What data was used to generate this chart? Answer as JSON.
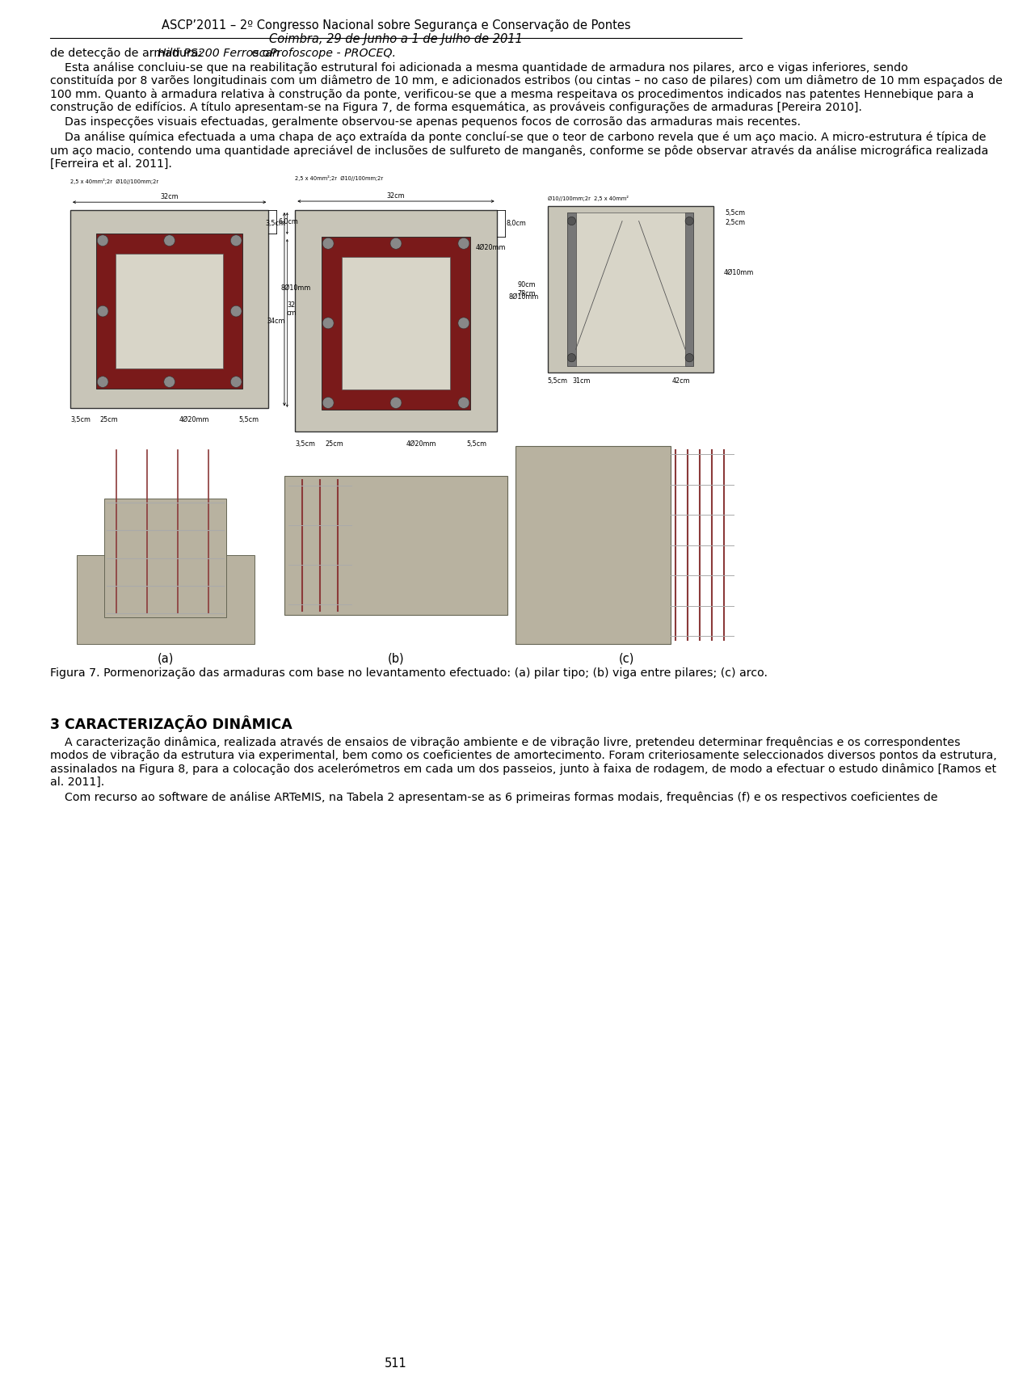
{
  "header_line1": "ASCP’2011 – 2º Congresso Nacional sobre Segurança e Conservação de Pontes",
  "header_line2": "Coimbra, 29 de Junho a 1 de Julho de 2011",
  "page_number": "511",
  "bg_color": "#ffffff",
  "text_color": "#000000",
  "line1_normal": "de detecção de armadura: ",
  "line1_italic1": "Hilti PS200 Ferroscan",
  "line1_mid": " e o ",
  "line1_italic2": "Profoscope - PROCEQ.",
  "para1": "Esta análise concluiu-se que na reabilitação estrutural foi adicionada a mesma quantidade de armadura nos pilares, arco e vigas inferiores, sendo constituída por 8 varões longitudinais com um diâmetro de 10 mm, e adicionados estribos (ou cintas – no caso de pilares) com um diâmetro de 10 mm espaçados de 100 mm. Quanto à armadura relativa à construção da ponte, verificou-se que a mesma respeitava os procedimentos indicados nas patentes Hennebique para a construção de edifícios. A título apresentam-se na Figura 7, de forma esquemática, as prováveis configurações de armaduras [Pereira 2010].",
  "para2": "Das inspecções visuais efectuadas, geralmente observou-se apenas pequenos focos de corrosão das armaduras mais recentes.",
  "para3": "Da análise química efectuada a uma chapa de aço extraída da ponte concluí-se que o teor de carbono revela que é um aço macio. A micro-estrutura é típica de um aço macio, contendo uma quantidade apreciável de inclusões de sulfureto de manganês, conforme se pôde observar através da análise micrográfica realizada [Ferreira et al. 2011].",
  "figure_caption": "Figura 7. Pormenorização das armaduras com base no levantamento efectuado: (a) pilar tipo; (b) viga entre pilares; (c) arco.",
  "figure_labels": [
    "(a)",
    "(b)",
    "(c)"
  ],
  "section_title": "3 CARACTERIZAÇÃO DINÂMICA",
  "sp1": "A caracterização dinâmica, realizada através de ensaios de vibração ambiente e de vibração livre, pretendeu determinar frequências e os correspondentes modos de vibração da estrutura via experimental, bem como os coeficientes de amortecimento. Foram criteriosamente seleccionados diversos pontos da estrutura, assinalados na Figura 8, para a colocação dos acelerómetros em cada um dos passeios, junto à faixa de rodagem, de modo a efectuar o estudo dinâmico [Ramos et al. 2011].",
  "sp2": "Com recurso ao software de análise ARTeMIS, na Tabela 2 apresentam-se as 6 primeiras formas modais, frequências (f) e os respectivos coeficientes de"
}
